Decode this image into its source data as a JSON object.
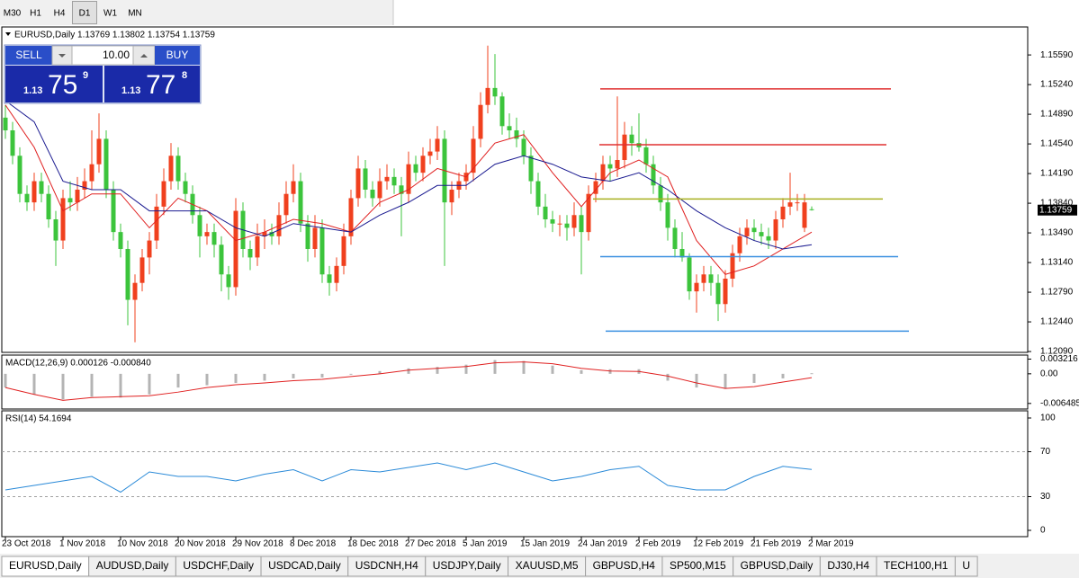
{
  "toolbar": [
    "M30",
    "H1",
    "H4",
    "D1",
    "W1",
    "MN"
  ],
  "trade_panel": {
    "sell": "SELL",
    "lot": "10.00",
    "buy": "BUY",
    "bid": {
      "prefix": "1.13",
      "pips": "75",
      "fraction": "9"
    },
    "ask": {
      "prefix": "1.13",
      "pips": "77",
      "fraction": "8"
    }
  },
  "chart_data": [
    {
      "type": "candlestick",
      "title": "EURUSD,Daily  1.13769 1.13802 1.13754 1.13759",
      "up_color": "#f0401e",
      "down_color": "#3cc43c",
      "ylim": [
        1.1208,
        1.1592
      ],
      "yticks": [
        {
          "value": 1.1559,
          "label": "1.15590"
        },
        {
          "value": 1.1524,
          "label": "1.15240"
        },
        {
          "value": 1.1489,
          "label": "1.14890"
        },
        {
          "value": 1.1454,
          "label": "1.14540"
        },
        {
          "value": 1.1419,
          "label": "1.14190"
        },
        {
          "value": 1.1384,
          "label": "1.13840"
        },
        {
          "value": 1.1349,
          "label": "1.13490"
        },
        {
          "value": 1.1314,
          "label": "1.13140"
        },
        {
          "value": 1.1279,
          "label": "1.12790"
        },
        {
          "value": 1.1244,
          "label": "1.12440"
        },
        {
          "value": 1.1209,
          "label": "1.12090"
        }
      ],
      "price_tag": {
        "value": 1.13759,
        "label": "1.13759"
      },
      "x_labels": [
        "23 Oct 2018",
        "1 Nov 2018",
        "10 Nov 2018",
        "20 Nov 2018",
        "29 Nov 2018",
        "8 Dec 2018",
        "18 Dec 2018",
        "27 Dec 2018",
        "5 Jan 2019",
        "15 Jan 2019",
        "24 Jan 2019",
        "2 Feb 2019",
        "12 Feb 2019",
        "21 Feb 2019",
        "2 Mar 2019"
      ],
      "open": [
        1.1485,
        1.147,
        1.144,
        1.1395,
        1.1385,
        1.141,
        1.1395,
        1.1365,
        1.134,
        1.139,
        1.1385,
        1.14,
        1.141,
        1.143,
        1.146,
        1.14,
        1.135,
        1.133,
        1.127,
        1.129,
        1.132,
        1.134,
        1.138,
        1.141,
        1.144,
        1.141,
        1.1395,
        1.137,
        1.1345,
        1.135,
        1.1335,
        1.13,
        1.1285,
        1.1375,
        1.133,
        1.132,
        1.1345,
        1.135,
        1.1345,
        1.137,
        1.1395,
        1.141,
        1.136,
        1.133,
        1.1355,
        1.13,
        1.129,
        1.131,
        1.1345,
        1.139,
        1.1425,
        1.14,
        1.139,
        1.141,
        1.1415,
        1.1405,
        1.1395,
        1.143,
        1.142,
        1.144,
        1.1445,
        1.146,
        1.1385,
        1.14,
        1.141,
        1.142,
        1.146,
        1.15,
        1.152,
        1.151,
        1.1475,
        1.147,
        1.146,
        1.144,
        1.141,
        1.138,
        1.1365,
        1.136,
        1.136,
        1.1355,
        1.137,
        1.135,
        1.1395,
        1.141,
        1.143,
        1.1425,
        1.1435,
        1.1465,
        1.1455,
        1.145,
        1.143,
        1.1405,
        1.1385,
        1.1355,
        1.133,
        1.132,
        1.128,
        1.129,
        1.13,
        1.129,
        1.1265,
        1.1295,
        1.1325,
        1.1345,
        1.1355,
        1.135,
        1.1345,
        1.134,
        1.1365,
        1.138,
        1.1385,
        1.1355,
        1.13769
      ],
      "high": [
        1.15,
        1.148,
        1.145,
        1.1405,
        1.142,
        1.142,
        1.1405,
        1.1375,
        1.14,
        1.141,
        1.1415,
        1.1425,
        1.147,
        1.149,
        1.147,
        1.141,
        1.136,
        1.134,
        1.13,
        1.133,
        1.135,
        1.1395,
        1.1425,
        1.1455,
        1.145,
        1.142,
        1.1405,
        1.138,
        1.136,
        1.136,
        1.1345,
        1.131,
        1.139,
        1.1385,
        1.134,
        1.136,
        1.1365,
        1.136,
        1.1385,
        1.141,
        1.143,
        1.142,
        1.137,
        1.137,
        1.1365,
        1.131,
        1.132,
        1.136,
        1.14,
        1.144,
        1.1435,
        1.141,
        1.1425,
        1.143,
        1.1425,
        1.1415,
        1.1445,
        1.144,
        1.145,
        1.146,
        1.1475,
        1.147,
        1.141,
        1.142,
        1.143,
        1.1475,
        1.1515,
        1.157,
        1.156,
        1.1515,
        1.149,
        1.1485,
        1.147,
        1.145,
        1.142,
        1.1395,
        1.1375,
        1.137,
        1.137,
        1.1385,
        1.138,
        1.1405,
        1.142,
        1.144,
        1.144,
        1.151,
        1.148,
        1.1475,
        1.149,
        1.146,
        1.144,
        1.1415,
        1.1395,
        1.1365,
        1.135,
        1.1325,
        1.13,
        1.131,
        1.131,
        1.13,
        1.1305,
        1.1335,
        1.1355,
        1.1365,
        1.1365,
        1.136,
        1.1355,
        1.1375,
        1.139,
        1.142,
        1.1395,
        1.1395,
        1.13802
      ],
      "low": [
        1.146,
        1.143,
        1.1385,
        1.1375,
        1.1375,
        1.1385,
        1.1355,
        1.131,
        1.133,
        1.1375,
        1.1375,
        1.139,
        1.14,
        1.142,
        1.139,
        1.134,
        1.132,
        1.124,
        1.122,
        1.128,
        1.13,
        1.133,
        1.137,
        1.14,
        1.14,
        1.1385,
        1.136,
        1.132,
        1.1335,
        1.132,
        1.128,
        1.127,
        1.1275,
        1.132,
        1.1305,
        1.131,
        1.133,
        1.1335,
        1.1335,
        1.136,
        1.1385,
        1.135,
        1.1315,
        1.132,
        1.129,
        1.1275,
        1.128,
        1.13,
        1.1335,
        1.138,
        1.139,
        1.138,
        1.138,
        1.14,
        1.1395,
        1.1345,
        1.1385,
        1.141,
        1.141,
        1.143,
        1.1435,
        1.131,
        1.137,
        1.139,
        1.14,
        1.141,
        1.145,
        1.149,
        1.15,
        1.1465,
        1.146,
        1.145,
        1.143,
        1.1395,
        1.137,
        1.1355,
        1.135,
        1.1345,
        1.134,
        1.1345,
        1.13,
        1.134,
        1.1385,
        1.14,
        1.141,
        1.1415,
        1.1425,
        1.144,
        1.1445,
        1.142,
        1.1395,
        1.1375,
        1.134,
        1.132,
        1.1315,
        1.127,
        1.1255,
        1.128,
        1.1275,
        1.1245,
        1.1255,
        1.1285,
        1.1315,
        1.1335,
        1.134,
        1.1335,
        1.133,
        1.133,
        1.1355,
        1.137,
        1.1375,
        1.135,
        1.13754
      ],
      "close": [
        1.147,
        1.144,
        1.1395,
        1.1385,
        1.141,
        1.1395,
        1.1365,
        1.134,
        1.139,
        1.1385,
        1.14,
        1.141,
        1.143,
        1.146,
        1.14,
        1.135,
        1.133,
        1.127,
        1.129,
        1.132,
        1.134,
        1.138,
        1.141,
        1.144,
        1.141,
        1.1395,
        1.137,
        1.1345,
        1.135,
        1.1335,
        1.13,
        1.1285,
        1.1375,
        1.133,
        1.132,
        1.1345,
        1.135,
        1.1345,
        1.137,
        1.1395,
        1.141,
        1.136,
        1.133,
        1.1355,
        1.13,
        1.129,
        1.131,
        1.1345,
        1.139,
        1.1425,
        1.14,
        1.139,
        1.141,
        1.1415,
        1.1405,
        1.1395,
        1.143,
        1.142,
        1.144,
        1.1445,
        1.146,
        1.1385,
        1.14,
        1.141,
        1.142,
        1.146,
        1.15,
        1.152,
        1.151,
        1.1475,
        1.147,
        1.146,
        1.144,
        1.141,
        1.138,
        1.1365,
        1.136,
        1.136,
        1.1355,
        1.137,
        1.135,
        1.1395,
        1.141,
        1.143,
        1.1425,
        1.1435,
        1.1465,
        1.1455,
        1.145,
        1.143,
        1.1405,
        1.1385,
        1.1355,
        1.133,
        1.132,
        1.128,
        1.129,
        1.13,
        1.129,
        1.1265,
        1.1295,
        1.1325,
        1.1345,
        1.1355,
        1.135,
        1.1345,
        1.134,
        1.1365,
        1.138,
        1.1385,
        1.1385,
        1.1385,
        1.13759
      ],
      "lines": [
        {
          "color": "#e02020",
          "x": [
            0,
            4,
            8,
            12,
            16,
            20,
            24,
            28,
            32,
            36,
            40,
            44,
            48,
            52,
            56,
            60,
            64,
            68,
            72,
            76,
            80,
            84,
            88,
            92,
            96,
            100,
            104,
            108,
            112
          ],
          "values": [
            1.15,
            1.145,
            1.1375,
            1.1395,
            1.1395,
            1.1355,
            1.139,
            1.1375,
            1.134,
            1.135,
            1.1365,
            1.136,
            1.135,
            1.1385,
            1.14,
            1.1425,
            1.1415,
            1.1455,
            1.1465,
            1.142,
            1.138,
            1.142,
            1.1435,
            1.1415,
            1.134,
            1.13,
            1.131,
            1.133,
            1.135
          ]
        },
        {
          "color": "#1a1a90",
          "x": [
            0,
            4,
            8,
            12,
            16,
            20,
            24,
            28,
            32,
            36,
            40,
            44,
            48,
            52,
            56,
            60,
            64,
            68,
            72,
            76,
            80,
            84,
            88,
            92,
            96,
            100,
            104,
            108,
            112
          ],
          "values": [
            1.1505,
            1.148,
            1.141,
            1.14,
            1.14,
            1.1375,
            1.1375,
            1.1375,
            1.1355,
            1.1345,
            1.136,
            1.1355,
            1.135,
            1.137,
            1.1385,
            1.1405,
            1.1405,
            1.143,
            1.144,
            1.143,
            1.1415,
            1.141,
            1.142,
            1.14,
            1.1375,
            1.1355,
            1.134,
            1.133,
            1.1335
          ]
        }
      ],
      "levels": [
        {
          "value": 1.1519,
          "color": "#e03030"
        },
        {
          "value": 1.1453,
          "color": "#e03030"
        },
        {
          "value": 1.1389,
          "color": "#a8b020"
        },
        {
          "value": 1.1321,
          "color": "#3a90e0"
        },
        {
          "value": 1.1233,
          "color": "#3a90e0"
        }
      ]
    },
    {
      "type": "macd",
      "title": "MACD(12,26,9) 0.000126 -0.000840",
      "ylim": [
        -0.0077,
        0.0041
      ],
      "yticks": [
        0.003216,
        {
          "value": 0,
          "label": "0.00"
        },
        -0.006485
      ],
      "hist_color": "#b4b4b4",
      "x": [
        0,
        4,
        8,
        12,
        16,
        20,
        24,
        28,
        32,
        36,
        40,
        44,
        48,
        52,
        56,
        60,
        64,
        68,
        72,
        76,
        80,
        84,
        88,
        92,
        96,
        100,
        104,
        108,
        112
      ],
      "values": [
        -0.003,
        -0.0045,
        -0.0056,
        -0.005,
        -0.0052,
        -0.0045,
        -0.003,
        -0.0025,
        -0.002,
        -0.0015,
        -0.001,
        -0.0008,
        -0.0002,
        0.0006,
        0.0012,
        0.0015,
        0.002,
        0.003,
        0.0028,
        0.0018,
        0.0008,
        0.001,
        0.001,
        -0.0015,
        -0.003,
        -0.0033,
        -0.002,
        -0.001,
        0.000126
      ],
      "signal": {
        "color": "#e02020",
        "values": [
          -0.003,
          -0.0045,
          -0.0058,
          -0.0052,
          -0.005,
          -0.0048,
          -0.004,
          -0.003,
          -0.0024,
          -0.002,
          -0.0015,
          -0.0012,
          -0.0006,
          0.0,
          0.0008,
          0.0012,
          0.0016,
          0.0024,
          0.0026,
          0.0022,
          0.0012,
          0.0006,
          0.0005,
          -0.0005,
          -0.002,
          -0.0032,
          -0.0028,
          -0.0018,
          -0.00084
        ]
      }
    },
    {
      "type": "rsi",
      "title": "RSI(14) 54.1694",
      "ylim": [
        -5.6,
        106.4
      ],
      "yticks": [
        0,
        30,
        70,
        100
      ],
      "levels": [
        30,
        70
      ],
      "color": "#2a8ad8",
      "x": [
        0,
        4,
        8,
        12,
        16,
        20,
        24,
        28,
        32,
        36,
        40,
        44,
        48,
        52,
        56,
        60,
        64,
        68,
        72,
        76,
        80,
        84,
        88,
        92,
        96,
        100,
        104,
        108,
        112
      ],
      "values": [
        36,
        40,
        44,
        48,
        34,
        52,
        48,
        48,
        44,
        50,
        54,
        44,
        54,
        52,
        56,
        60,
        54,
        60,
        52,
        44,
        48,
        54,
        57,
        40,
        36,
        36,
        48,
        57,
        54.1694
      ]
    }
  ],
  "tabs": [
    "EURUSD,Daily",
    "AUDUSD,Daily",
    "USDCHF,Daily",
    "USDCAD,Daily",
    "USDCNH,H4",
    "USDJPY,Daily",
    "XAUUSD,M5",
    "GBPUSD,H4",
    "SP500,M15",
    "GBPUSD,Daily",
    "DJ30,H4",
    "TECH100,H1",
    "U"
  ]
}
